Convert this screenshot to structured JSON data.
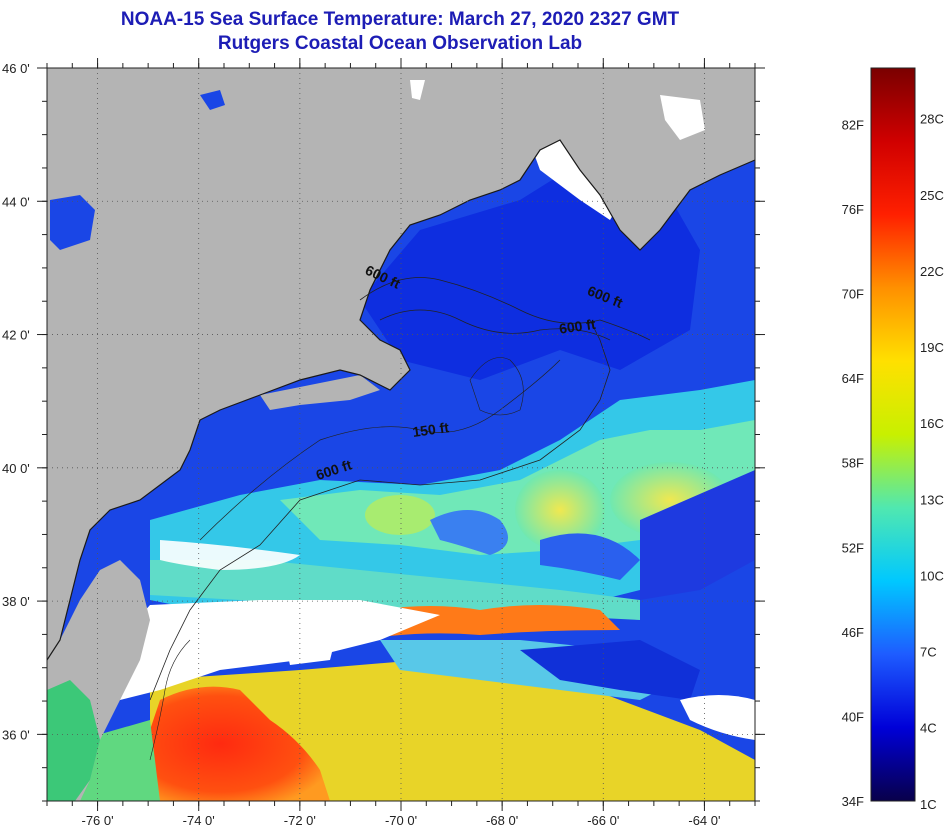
{
  "title": {
    "line1": "NOAA-15 Sea Surface Temperature:  March 27, 2020 2327 GMT",
    "line2": "Rutgers Coastal Ocean Observation Lab"
  },
  "map": {
    "lon_range": [
      -77,
      -63
    ],
    "lat_range": [
      35,
      46
    ],
    "lon_ticks": [
      {
        "value": -76,
        "label": "-76 0'"
      },
      {
        "value": -74,
        "label": "-74 0'"
      },
      {
        "value": -72,
        "label": "-72 0'"
      },
      {
        "value": -70,
        "label": "-70 0'"
      },
      {
        "value": -68,
        "label": "-68 0'"
      },
      {
        "value": -66,
        "label": "-66 0'"
      },
      {
        "value": -64,
        "label": "-64 0'"
      }
    ],
    "lat_ticks": [
      {
        "value": 46,
        "label": "46 0'"
      },
      {
        "value": 44,
        "label": "44 0'"
      },
      {
        "value": 42,
        "label": "42 0'"
      },
      {
        "value": 40,
        "label": "40 0'"
      },
      {
        "value": 38,
        "label": "38 0'"
      },
      {
        "value": 36,
        "label": "36 0'"
      }
    ],
    "contour_labels": [
      {
        "text": "600 ft",
        "lon": -70.4,
        "lat": 42.8
      },
      {
        "text": "600 ft",
        "lon": -66.0,
        "lat": 42.5
      },
      {
        "text": "600 ft",
        "lon": -66.5,
        "lat": 42.05
      },
      {
        "text": "150 ft",
        "lon": -69.4,
        "lat": 40.5
      },
      {
        "text": "600 ft",
        "lon": -71.3,
        "lat": 39.9
      }
    ],
    "colors": {
      "land": "#b4b4b4",
      "cloud": "#ffffff",
      "coast": "#1a1a1a"
    }
  },
  "colorbar": {
    "range_f": [
      34,
      86
    ],
    "f_labels": [
      "82F",
      "76F",
      "70F",
      "64F",
      "58F",
      "52F",
      "46F",
      "40F",
      "34F"
    ],
    "c_labels": [
      "28C",
      "25C",
      "22C",
      "19C",
      "16C",
      "13C",
      "10C",
      "7C",
      "4C",
      "1C"
    ],
    "stops": [
      "#08004a",
      "#0000d8",
      "#1e5cff",
      "#00c8ff",
      "#50e8b0",
      "#c8f000",
      "#ffe000",
      "#ff9000",
      "#ff2000",
      "#d00000",
      "#7a0000"
    ]
  }
}
